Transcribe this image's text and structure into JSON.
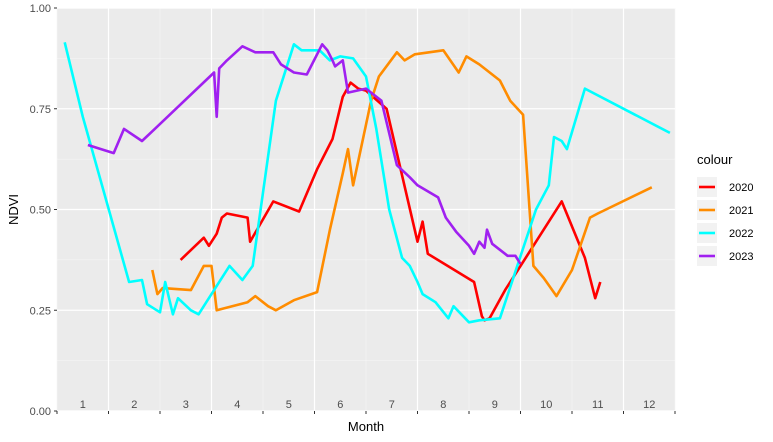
{
  "chart_data": {
    "type": "line",
    "xlabel": "Month",
    "ylabel": "NDVI",
    "x_range": [
      0.5,
      12.5
    ],
    "ylim": [
      0.0,
      1.0
    ],
    "y_ticks": [
      "0.00",
      "0.25",
      "0.50",
      "0.75",
      "1.00"
    ],
    "y_tick_values": [
      0.0,
      0.25,
      0.5,
      0.75,
      1.0
    ],
    "month_labels": [
      "1",
      "2",
      "3",
      "4",
      "5",
      "6",
      "7",
      "8",
      "9",
      "10",
      "11",
      "12"
    ],
    "grid": true,
    "legend": {
      "title": "colour",
      "placement": "right"
    },
    "series": [
      {
        "name": "2020",
        "color": "#ff0000",
        "points": [
          [
            2.9,
            0.375
          ],
          [
            3.35,
            0.43
          ],
          [
            3.45,
            0.41
          ],
          [
            3.6,
            0.44
          ],
          [
            3.7,
            0.48
          ],
          [
            3.8,
            0.49
          ],
          [
            4.2,
            0.48
          ],
          [
            4.25,
            0.42
          ],
          [
            4.7,
            0.52
          ],
          [
            5.2,
            0.495
          ],
          [
            5.55,
            0.6
          ],
          [
            5.85,
            0.675
          ],
          [
            6.05,
            0.78
          ],
          [
            6.2,
            0.815
          ],
          [
            6.35,
            0.8
          ],
          [
            6.5,
            0.795
          ],
          [
            6.9,
            0.75
          ],
          [
            7.3,
            0.53
          ],
          [
            7.5,
            0.42
          ],
          [
            7.6,
            0.47
          ],
          [
            7.7,
            0.39
          ],
          [
            8.6,
            0.32
          ],
          [
            8.75,
            0.235
          ],
          [
            8.8,
            0.225
          ],
          [
            8.9,
            0.23
          ],
          [
            9.2,
            0.3
          ],
          [
            9.8,
            0.42
          ],
          [
            10.3,
            0.52
          ],
          [
            10.75,
            0.38
          ],
          [
            10.95,
            0.28
          ],
          [
            11.05,
            0.32
          ]
        ]
      },
      {
        "name": "2021",
        "color": "#ff8c00",
        "points": [
          [
            2.35,
            0.35
          ],
          [
            2.45,
            0.29
          ],
          [
            2.55,
            0.305
          ],
          [
            3.1,
            0.3
          ],
          [
            3.35,
            0.36
          ],
          [
            3.5,
            0.36
          ],
          [
            3.6,
            0.25
          ],
          [
            4.2,
            0.27
          ],
          [
            4.35,
            0.285
          ],
          [
            4.6,
            0.26
          ],
          [
            4.75,
            0.25
          ],
          [
            5.1,
            0.275
          ],
          [
            5.55,
            0.295
          ],
          [
            5.8,
            0.45
          ],
          [
            6.05,
            0.59
          ],
          [
            6.15,
            0.65
          ],
          [
            6.25,
            0.56
          ],
          [
            6.6,
            0.77
          ],
          [
            6.75,
            0.83
          ],
          [
            7.1,
            0.89
          ],
          [
            7.25,
            0.87
          ],
          [
            7.45,
            0.885
          ],
          [
            8.0,
            0.895
          ],
          [
            8.3,
            0.84
          ],
          [
            8.45,
            0.88
          ],
          [
            8.7,
            0.86
          ],
          [
            9.1,
            0.82
          ],
          [
            9.3,
            0.77
          ],
          [
            9.55,
            0.735
          ],
          [
            9.75,
            0.36
          ],
          [
            9.95,
            0.33
          ],
          [
            10.2,
            0.285
          ],
          [
            10.5,
            0.35
          ],
          [
            10.85,
            0.48
          ],
          [
            11.0,
            0.49
          ],
          [
            12.05,
            0.555
          ]
        ]
      },
      {
        "name": "2022",
        "color": "#00ffff",
        "points": [
          [
            0.65,
            0.915
          ],
          [
            1.0,
            0.73
          ],
          [
            1.9,
            0.32
          ],
          [
            2.15,
            0.325
          ],
          [
            2.25,
            0.265
          ],
          [
            2.5,
            0.245
          ],
          [
            2.6,
            0.32
          ],
          [
            2.75,
            0.24
          ],
          [
            2.85,
            0.28
          ],
          [
            3.1,
            0.25
          ],
          [
            3.25,
            0.24
          ],
          [
            3.4,
            0.27
          ],
          [
            3.85,
            0.36
          ],
          [
            4.1,
            0.325
          ],
          [
            4.3,
            0.36
          ],
          [
            4.75,
            0.77
          ],
          [
            5.1,
            0.91
          ],
          [
            5.25,
            0.895
          ],
          [
            5.6,
            0.895
          ],
          [
            5.8,
            0.87
          ],
          [
            6.0,
            0.88
          ],
          [
            6.25,
            0.875
          ],
          [
            6.5,
            0.83
          ],
          [
            6.7,
            0.7
          ],
          [
            6.95,
            0.5
          ],
          [
            7.2,
            0.38
          ],
          [
            7.35,
            0.36
          ],
          [
            7.5,
            0.32
          ],
          [
            7.6,
            0.29
          ],
          [
            7.85,
            0.27
          ],
          [
            8.1,
            0.23
          ],
          [
            8.2,
            0.26
          ],
          [
            8.5,
            0.22
          ],
          [
            8.7,
            0.225
          ],
          [
            9.1,
            0.23
          ],
          [
            9.8,
            0.5
          ],
          [
            10.05,
            0.56
          ],
          [
            10.15,
            0.68
          ],
          [
            10.3,
            0.67
          ],
          [
            10.4,
            0.65
          ],
          [
            10.75,
            0.8
          ],
          [
            12.4,
            0.69
          ]
        ]
      },
      {
        "name": "2023",
        "color": "#a020f0",
        "points": [
          [
            1.1,
            0.66
          ],
          [
            1.6,
            0.64
          ],
          [
            1.8,
            0.7
          ],
          [
            2.15,
            0.67
          ],
          [
            2.4,
            0.7
          ],
          [
            3.55,
            0.84
          ],
          [
            3.6,
            0.73
          ],
          [
            3.65,
            0.85
          ],
          [
            3.8,
            0.87
          ],
          [
            4.1,
            0.905
          ],
          [
            4.35,
            0.89
          ],
          [
            4.7,
            0.89
          ],
          [
            4.85,
            0.86
          ],
          [
            5.1,
            0.84
          ],
          [
            5.35,
            0.835
          ],
          [
            5.65,
            0.91
          ],
          [
            5.75,
            0.895
          ],
          [
            5.85,
            0.87
          ],
          [
            5.9,
            0.855
          ],
          [
            6.05,
            0.87
          ],
          [
            6.15,
            0.79
          ],
          [
            6.5,
            0.8
          ],
          [
            6.8,
            0.77
          ],
          [
            7.1,
            0.61
          ],
          [
            7.35,
            0.58
          ],
          [
            7.5,
            0.56
          ],
          [
            7.9,
            0.53
          ],
          [
            8.05,
            0.48
          ],
          [
            8.25,
            0.445
          ],
          [
            8.5,
            0.41
          ],
          [
            8.6,
            0.39
          ],
          [
            8.7,
            0.42
          ],
          [
            8.8,
            0.405
          ],
          [
            8.85,
            0.45
          ],
          [
            8.95,
            0.415
          ],
          [
            9.25,
            0.385
          ],
          [
            9.4,
            0.385
          ],
          [
            9.5,
            0.365
          ]
        ]
      }
    ]
  }
}
